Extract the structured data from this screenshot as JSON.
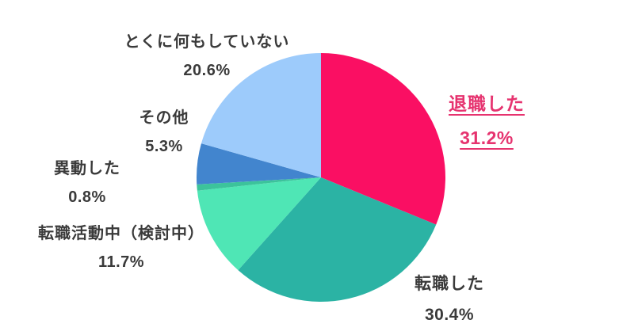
{
  "colors": {
    "background": "#ffffff",
    "label_text": "#3a3a3a",
    "highlight_text": "#e6336f"
  },
  "chart_data": {
    "type": "pie",
    "title": "",
    "start_angle_deg": 0,
    "direction": "clockwise",
    "legend_position": "labels-around-pie",
    "slices": [
      {
        "label": "退職した",
        "value": 31.2,
        "pct_label": "31.2%",
        "color": "#fa0f63",
        "highlighted": true
      },
      {
        "label": "転職した",
        "value": 30.4,
        "pct_label": "30.4%",
        "color": "#2bb3a4",
        "highlighted": false
      },
      {
        "label": "転職活動中（検討中）",
        "value": 11.7,
        "pct_label": "11.7%",
        "color": "#4fe6b5",
        "highlighted": false
      },
      {
        "label": "異動した",
        "value": 0.8,
        "pct_label": "0.8%",
        "color": "#3cc39b",
        "highlighted": false
      },
      {
        "label": "その他",
        "value": 5.3,
        "pct_label": "5.3%",
        "color": "#4285ce",
        "highlighted": false
      },
      {
        "label": "とくに何もしていない",
        "value": 20.6,
        "pct_label": "20.6%",
        "color": "#9dcbfb",
        "highlighted": false
      }
    ]
  }
}
